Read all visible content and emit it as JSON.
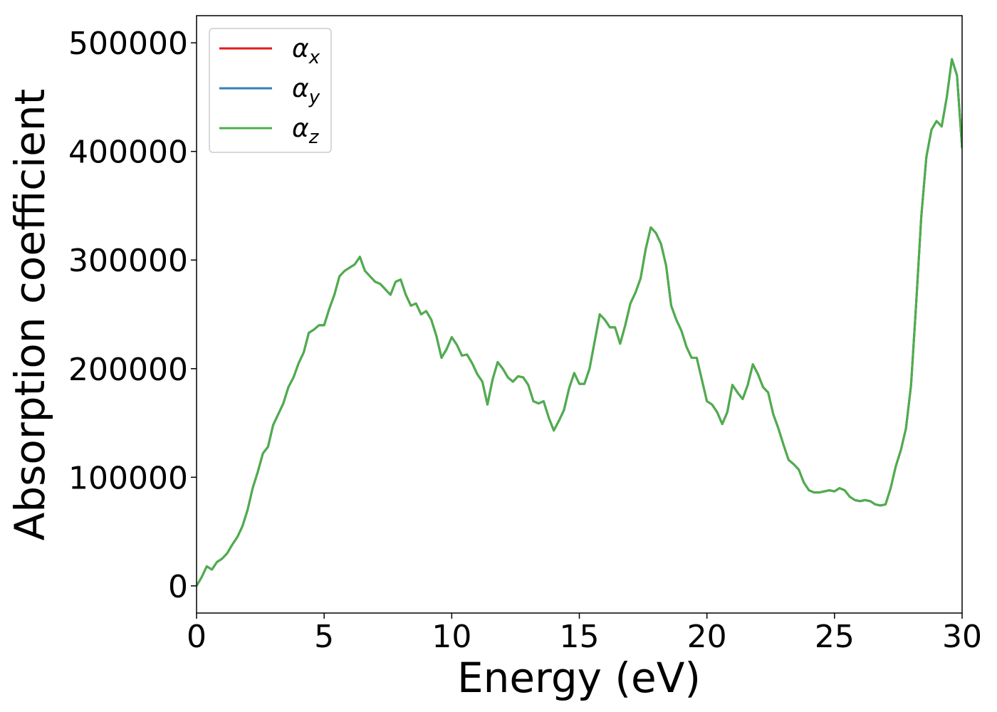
{
  "chart_data": {
    "type": "line",
    "xlabel": "Energy (eV)",
    "ylabel": "Absorption coefficient",
    "xlim": [
      0,
      30
    ],
    "xticks": [
      0,
      5,
      10,
      15,
      20,
      25,
      30
    ],
    "ylim": [
      -25000,
      525000
    ],
    "yticks": [
      0,
      100000,
      200000,
      300000,
      400000,
      500000
    ],
    "legend": "upper left",
    "grid": false,
    "x": [
      0,
      0.2,
      0.4,
      0.6,
      0.8,
      1.0,
      1.2,
      1.4,
      1.6,
      1.8,
      2.0,
      2.2,
      2.4,
      2.6,
      2.8,
      3.0,
      3.2,
      3.4,
      3.6,
      3.8,
      4.0,
      4.2,
      4.4,
      4.6,
      4.8,
      5.0,
      5.2,
      5.4,
      5.6,
      5.8,
      6.0,
      6.2,
      6.4,
      6.6,
      6.8,
      7.0,
      7.2,
      7.4,
      7.6,
      7.8,
      8.0,
      8.2,
      8.4,
      8.6,
      8.8,
      9.0,
      9.2,
      9.4,
      9.6,
      9.8,
      10.0,
      10.2,
      10.4,
      10.6,
      10.8,
      11.0,
      11.2,
      11.4,
      11.6,
      11.8,
      12.0,
      12.2,
      12.4,
      12.6,
      12.8,
      13.0,
      13.2,
      13.4,
      13.6,
      13.8,
      14.0,
      14.2,
      14.4,
      14.6,
      14.8,
      15.0,
      15.2,
      15.4,
      15.6,
      15.8,
      16.0,
      16.2,
      16.4,
      16.6,
      16.8,
      17.0,
      17.2,
      17.4,
      17.6,
      17.8,
      18.0,
      18.2,
      18.4,
      18.6,
      18.8,
      19.0,
      19.2,
      19.4,
      19.6,
      19.8,
      20.0,
      20.2,
      20.4,
      20.6,
      20.8,
      21.0,
      21.2,
      21.4,
      21.6,
      21.8,
      22.0,
      22.2,
      22.4,
      22.6,
      22.8,
      23.0,
      23.2,
      23.4,
      23.6,
      23.8,
      24.0,
      24.2,
      24.4,
      24.6,
      24.8,
      25.0,
      25.2,
      25.4,
      25.6,
      25.8,
      26.0,
      26.2,
      26.4,
      26.6,
      26.8,
      27.0,
      27.2,
      27.4,
      27.6,
      27.8,
      28.0,
      28.2,
      28.4,
      28.6,
      28.8,
      29.0,
      29.2,
      29.4,
      29.6,
      29.8,
      30.0
    ],
    "series": [
      {
        "name": "αx",
        "color": "#e41a1c",
        "values": [
          0,
          8000,
          18000,
          15000,
          22000,
          25000,
          30000,
          38000,
          45000,
          55000,
          70000,
          90000,
          105000,
          122000,
          128000,
          148000,
          158000,
          168000,
          183000,
          192000,
          205000,
          215000,
          233000,
          236000,
          240000,
          240000,
          255000,
          268000,
          285000,
          290000,
          293000,
          296000,
          303000,
          290000,
          285000,
          280000,
          278000,
          273000,
          268000,
          280000,
          282000,
          268000,
          258000,
          260000,
          250000,
          253000,
          245000,
          230000,
          210000,
          218000,
          229000,
          222000,
          212000,
          213000,
          205000,
          195000,
          188000,
          167000,
          190000,
          206000,
          200000,
          192000,
          188000,
          193000,
          192000,
          185000,
          170000,
          168000,
          170000,
          155000,
          143000,
          152000,
          162000,
          182000,
          196000,
          186000,
          186000,
          200000,
          225000,
          250000,
          245000,
          238000,
          238000,
          223000,
          240000,
          260000,
          270000,
          283000,
          310000,
          330000,
          325000,
          315000,
          295000,
          258000,
          245000,
          235000,
          220000,
          210000,
          210000,
          190000,
          170000,
          167000,
          160000,
          149000,
          160000,
          185000,
          178000,
          172000,
          185000,
          204000,
          195000,
          183000,
          178000,
          158000,
          145000,
          130000,
          116000,
          112000,
          107000,
          95000,
          88000,
          86000,
          86000,
          87000,
          88000,
          87000,
          90000,
          88000,
          82000,
          79000,
          78000,
          79000,
          78000,
          75000,
          74000,
          75000,
          90000,
          110000,
          125000,
          145000,
          185000,
          260000,
          340000,
          395000,
          420000,
          428000,
          423000,
          450000,
          485000,
          470000,
          403000
        ]
      },
      {
        "name": "αy",
        "color": "#377eb8",
        "values": [
          0,
          8000,
          18000,
          15000,
          22000,
          25000,
          30000,
          38000,
          45000,
          55000,
          70000,
          90000,
          105000,
          122000,
          128000,
          148000,
          158000,
          168000,
          183000,
          192000,
          205000,
          215000,
          233000,
          236000,
          240000,
          240000,
          255000,
          268000,
          285000,
          290000,
          293000,
          296000,
          303000,
          290000,
          285000,
          280000,
          278000,
          273000,
          268000,
          280000,
          282000,
          268000,
          258000,
          260000,
          250000,
          253000,
          245000,
          230000,
          210000,
          218000,
          229000,
          222000,
          212000,
          213000,
          205000,
          195000,
          188000,
          167000,
          190000,
          206000,
          200000,
          192000,
          188000,
          193000,
          192000,
          185000,
          170000,
          168000,
          170000,
          155000,
          143000,
          152000,
          162000,
          182000,
          196000,
          186000,
          186000,
          200000,
          225000,
          250000,
          245000,
          238000,
          238000,
          223000,
          240000,
          260000,
          270000,
          283000,
          310000,
          330000,
          325000,
          315000,
          295000,
          258000,
          245000,
          235000,
          220000,
          210000,
          210000,
          190000,
          170000,
          167000,
          160000,
          149000,
          160000,
          185000,
          178000,
          172000,
          185000,
          204000,
          195000,
          183000,
          178000,
          158000,
          145000,
          130000,
          116000,
          112000,
          107000,
          95000,
          88000,
          86000,
          86000,
          87000,
          88000,
          87000,
          90000,
          88000,
          82000,
          79000,
          78000,
          79000,
          78000,
          75000,
          74000,
          75000,
          90000,
          110000,
          125000,
          145000,
          185000,
          260000,
          340000,
          395000,
          420000,
          428000,
          423000,
          450000,
          485000,
          470000,
          403000
        ]
      },
      {
        "name": "αz",
        "color": "#4daf4a",
        "values": [
          0,
          8000,
          18000,
          15000,
          22000,
          25000,
          30000,
          38000,
          45000,
          55000,
          70000,
          90000,
          105000,
          122000,
          128000,
          148000,
          158000,
          168000,
          183000,
          192000,
          205000,
          215000,
          233000,
          236000,
          240000,
          240000,
          255000,
          268000,
          285000,
          290000,
          293000,
          296000,
          303000,
          290000,
          285000,
          280000,
          278000,
          273000,
          268000,
          280000,
          282000,
          268000,
          258000,
          260000,
          250000,
          253000,
          245000,
          230000,
          210000,
          218000,
          229000,
          222000,
          212000,
          213000,
          205000,
          195000,
          188000,
          167000,
          190000,
          206000,
          200000,
          192000,
          188000,
          193000,
          192000,
          185000,
          170000,
          168000,
          170000,
          155000,
          143000,
          152000,
          162000,
          182000,
          196000,
          186000,
          186000,
          200000,
          225000,
          250000,
          245000,
          238000,
          238000,
          223000,
          240000,
          260000,
          270000,
          283000,
          310000,
          330000,
          325000,
          315000,
          295000,
          258000,
          245000,
          235000,
          220000,
          210000,
          210000,
          190000,
          170000,
          167000,
          160000,
          149000,
          160000,
          185000,
          178000,
          172000,
          185000,
          204000,
          195000,
          183000,
          178000,
          158000,
          145000,
          130000,
          116000,
          112000,
          107000,
          95000,
          88000,
          86000,
          86000,
          87000,
          88000,
          87000,
          90000,
          88000,
          82000,
          79000,
          78000,
          79000,
          78000,
          75000,
          74000,
          75000,
          90000,
          110000,
          125000,
          145000,
          185000,
          260000,
          340000,
          395000,
          420000,
          428000,
          423000,
          450000,
          485000,
          470000,
          403000
        ]
      }
    ]
  }
}
